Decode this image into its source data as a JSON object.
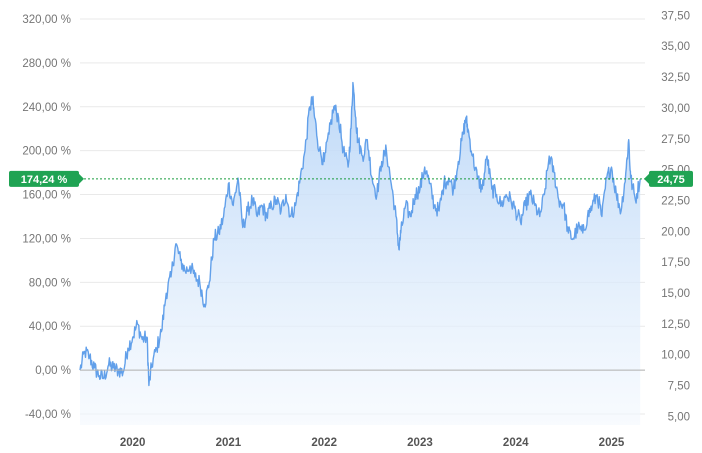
{
  "chart_data": {
    "type": "area",
    "title": "",
    "xlabel": "",
    "ylabel": "",
    "left_axis": {
      "unit": "percent",
      "ylim": [
        -50,
        330
      ],
      "tick_values": [
        -40,
        0,
        40,
        80,
        120,
        160,
        200,
        240,
        280,
        320
      ],
      "tick_labels": [
        "-40,00 %",
        "0,00 %",
        "40,00 %",
        "80,00 %",
        "120,00 %",
        "160,00 %",
        "200,00 %",
        "240,00 %",
        "280,00 %",
        "320,00 %"
      ]
    },
    "right_axis": {
      "unit": "price",
      "ylim": [
        4.3,
        38.1
      ],
      "tick_values": [
        5,
        7.5,
        10,
        12.5,
        15,
        17.5,
        20,
        22.5,
        25,
        27.5,
        30,
        32.5,
        35,
        37.5
      ],
      "tick_labels": [
        "5,00",
        "7,50",
        "10,00",
        "12,50",
        "15,00",
        "17,50",
        "20,00",
        "22,50",
        "25,00",
        "27,50",
        "30,00",
        "32,50",
        "35,00",
        "37,50"
      ]
    },
    "x_axis": {
      "range": [
        2019.45,
        2025.35
      ],
      "tick_values": [
        2020,
        2021,
        2022,
        2023,
        2024,
        2025
      ],
      "tick_labels": [
        "2020",
        "2021",
        "2022",
        "2023",
        "2024",
        "2025"
      ]
    },
    "grid": true,
    "zero_line": 0,
    "current": {
      "percent_label": "174,24 %",
      "price_label": "24,75",
      "percent_value": 174.24,
      "price_value": 24.75
    },
    "series": [
      {
        "values": [
          [
            2019.45,
            0
          ],
          [
            2019.5,
            17
          ],
          [
            2019.55,
            12
          ],
          [
            2019.6,
            2
          ],
          [
            2019.65,
            -5
          ],
          [
            2019.7,
            -7
          ],
          [
            2019.75,
            5
          ],
          [
            2019.8,
            2
          ],
          [
            2019.85,
            0
          ],
          [
            2019.9,
            -2
          ],
          [
            2019.95,
            20
          ],
          [
            2020.0,
            30
          ],
          [
            2020.05,
            42
          ],
          [
            2020.1,
            28
          ],
          [
            2020.15,
            30
          ],
          [
            2020.17,
            -14
          ],
          [
            2020.2,
            5
          ],
          [
            2020.25,
            20
          ],
          [
            2020.3,
            35
          ],
          [
            2020.35,
            70
          ],
          [
            2020.4,
            85
          ],
          [
            2020.45,
            115
          ],
          [
            2020.5,
            100
          ],
          [
            2020.55,
            90
          ],
          [
            2020.6,
            95
          ],
          [
            2020.65,
            85
          ],
          [
            2020.7,
            80
          ],
          [
            2020.75,
            60
          ],
          [
            2020.8,
            80
          ],
          [
            2020.85,
            120
          ],
          [
            2020.9,
            125
          ],
          [
            2020.95,
            140
          ],
          [
            2021.0,
            170
          ],
          [
            2021.05,
            150
          ],
          [
            2021.1,
            175
          ],
          [
            2021.15,
            130
          ],
          [
            2021.2,
            145
          ],
          [
            2021.25,
            155
          ],
          [
            2021.3,
            140
          ],
          [
            2021.35,
            150
          ],
          [
            2021.4,
            140
          ],
          [
            2021.45,
            150
          ],
          [
            2021.5,
            155
          ],
          [
            2021.55,
            145
          ],
          [
            2021.6,
            160
          ],
          [
            2021.65,
            140
          ],
          [
            2021.7,
            150
          ],
          [
            2021.75,
            175
          ],
          [
            2021.8,
            200
          ],
          [
            2021.85,
            240
          ],
          [
            2021.88,
            245
          ],
          [
            2021.9,
            230
          ],
          [
            2021.95,
            200
          ],
          [
            2022.0,
            190
          ],
          [
            2022.05,
            215
          ],
          [
            2022.1,
            240
          ],
          [
            2022.15,
            230
          ],
          [
            2022.2,
            200
          ],
          [
            2022.25,
            185
          ],
          [
            2022.28,
            220
          ],
          [
            2022.3,
            262
          ],
          [
            2022.33,
            230
          ],
          [
            2022.35,
            210
          ],
          [
            2022.4,
            195
          ],
          [
            2022.45,
            210
          ],
          [
            2022.5,
            175
          ],
          [
            2022.55,
            160
          ],
          [
            2022.6,
            190
          ],
          [
            2022.65,
            200
          ],
          [
            2022.7,
            170
          ],
          [
            2022.75,
            140
          ],
          [
            2022.78,
            110
          ],
          [
            2022.8,
            125
          ],
          [
            2022.85,
            150
          ],
          [
            2022.9,
            140
          ],
          [
            2022.95,
            160
          ],
          [
            2023.0,
            165
          ],
          [
            2023.05,
            185
          ],
          [
            2023.1,
            170
          ],
          [
            2023.15,
            150
          ],
          [
            2023.2,
            145
          ],
          [
            2023.25,
            170
          ],
          [
            2023.3,
            175
          ],
          [
            2023.35,
            165
          ],
          [
            2023.4,
            190
          ],
          [
            2023.45,
            215
          ],
          [
            2023.48,
            230
          ],
          [
            2023.5,
            220
          ],
          [
            2023.55,
            195
          ],
          [
            2023.6,
            175
          ],
          [
            2023.65,
            165
          ],
          [
            2023.7,
            195
          ],
          [
            2023.75,
            165
          ],
          [
            2023.8,
            160
          ],
          [
            2023.85,
            150
          ],
          [
            2023.9,
            160
          ],
          [
            2023.95,
            155
          ],
          [
            2024.0,
            145
          ],
          [
            2024.05,
            135
          ],
          [
            2024.1,
            150
          ],
          [
            2024.15,
            160
          ],
          [
            2024.2,
            150
          ],
          [
            2024.25,
            140
          ],
          [
            2024.3,
            160
          ],
          [
            2024.35,
            195
          ],
          [
            2024.4,
            180
          ],
          [
            2024.45,
            155
          ],
          [
            2024.5,
            150
          ],
          [
            2024.55,
            125
          ],
          [
            2024.6,
            120
          ],
          [
            2024.65,
            130
          ],
          [
            2024.7,
            125
          ],
          [
            2024.75,
            140
          ],
          [
            2024.8,
            150
          ],
          [
            2024.85,
            160
          ],
          [
            2024.9,
            140
          ],
          [
            2024.95,
            175
          ],
          [
            2025.0,
            185
          ],
          [
            2025.05,
            160
          ],
          [
            2025.1,
            145
          ],
          [
            2025.15,
            180
          ],
          [
            2025.18,
            210
          ],
          [
            2025.2,
            175
          ],
          [
            2025.25,
            155
          ],
          [
            2025.3,
            174.24
          ]
        ]
      }
    ],
    "colors": {
      "line": "#62a0ea",
      "area_top": "#b9d6f7",
      "area_bottom": "#f3f8fe",
      "grid": "#e9e9e9",
      "zero_line": "#b0b0b0",
      "current_badge": "#1fa353",
      "current_line": "#1a9c3e"
    }
  }
}
